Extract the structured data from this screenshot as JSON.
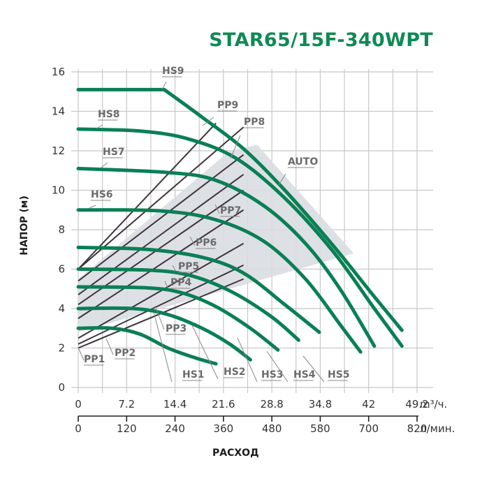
{
  "title": "STAR65/15F-340WPT",
  "axes": {
    "ylabel": "НАПОР (м)",
    "xlabel": "РАСХОД",
    "x_unit_top": "m³/ч.",
    "x_unit_bottom": "л/мин."
  },
  "colors": {
    "hs_curve": "#0a7f55",
    "pp_line": "#3d343d",
    "shade": "#d9dde1",
    "grid": "#c8c8c8",
    "title": "#0f8a55",
    "label": "#6b6b6b"
  },
  "chart_data": {
    "type": "line",
    "title": "STAR65/15F-340WPT",
    "xlabel": "РАСХОД",
    "ylabel": "НАПОР (м)",
    "x_ticks_m3h": [
      "0",
      "7.2",
      "14.4",
      "21.6",
      "28.8",
      "34.8",
      "42",
      "49.2"
    ],
    "x_ticks_lmin": [
      "0",
      "120",
      "240",
      "360",
      "480",
      "580",
      "700",
      "820"
    ],
    "y_ticks": [
      "0",
      "2",
      "4",
      "6",
      "8",
      "10",
      "12",
      "14",
      "16"
    ],
    "xlim": [
      0,
      49.2
    ],
    "ylim": [
      0,
      16
    ],
    "grid": true,
    "series": [
      {
        "name": "HS1",
        "type": "hs",
        "points": [
          [
            0,
            3.0
          ],
          [
            5,
            3.0
          ],
          [
            9,
            2.7
          ],
          [
            13,
            2.0
          ],
          [
            17,
            1.5
          ],
          [
            20,
            1.2
          ]
        ]
      },
      {
        "name": "HS2",
        "type": "hs",
        "points": [
          [
            0,
            4.0
          ],
          [
            8,
            4.0
          ],
          [
            13,
            3.7
          ],
          [
            18,
            3.0
          ],
          [
            22,
            2.2
          ],
          [
            25,
            1.4
          ]
        ]
      },
      {
        "name": "HS3",
        "type": "hs",
        "points": [
          [
            0,
            5.1
          ],
          [
            10,
            5.05
          ],
          [
            15,
            4.8
          ],
          [
            20,
            4.1
          ],
          [
            25,
            3.0
          ],
          [
            29,
            1.9
          ]
        ]
      },
      {
        "name": "HS4",
        "type": "hs",
        "points": [
          [
            0,
            6.0
          ],
          [
            10,
            5.95
          ],
          [
            16,
            5.7
          ],
          [
            22,
            4.9
          ],
          [
            28,
            3.6
          ],
          [
            32,
            2.4
          ]
        ]
      },
      {
        "name": "HS5",
        "type": "hs",
        "points": [
          [
            0,
            7.1
          ],
          [
            10,
            7.0
          ],
          [
            18,
            6.6
          ],
          [
            24,
            5.8
          ],
          [
            30,
            4.2
          ],
          [
            35,
            2.8
          ]
        ]
      },
      {
        "name": "HS6",
        "type": "hs",
        "points": [
          [
            0,
            9.0
          ],
          [
            12,
            8.95
          ],
          [
            20,
            8.5
          ],
          [
            27,
            7.4
          ],
          [
            33,
            5.5
          ],
          [
            38,
            3.2
          ],
          [
            41,
            1.8
          ]
        ]
      },
      {
        "name": "HS7",
        "type": "hs",
        "points": [
          [
            0,
            11.1
          ],
          [
            13,
            10.9
          ],
          [
            20,
            10.5
          ],
          [
            27,
            9.2
          ],
          [
            33,
            7.3
          ],
          [
            38,
            5.0
          ],
          [
            43,
            2.1
          ]
        ]
      },
      {
        "name": "HS8",
        "type": "hs",
        "points": [
          [
            0,
            13.1
          ],
          [
            9,
            13.0
          ],
          [
            16,
            12.6
          ],
          [
            23,
            11.6
          ],
          [
            30,
            9.6
          ],
          [
            37,
            6.9
          ],
          [
            43,
            4.0
          ],
          [
            47,
            2.1
          ]
        ]
      },
      {
        "name": "HS9",
        "type": "hs",
        "points": [
          [
            0,
            15.1
          ],
          [
            12.5,
            15.1
          ],
          [
            18,
            13.7
          ],
          [
            24,
            12.1
          ],
          [
            30,
            10.0
          ],
          [
            37,
            7.2
          ],
          [
            43,
            4.6
          ],
          [
            47,
            2.9
          ]
        ]
      },
      {
        "name": "PP1",
        "type": "pp",
        "points": [
          [
            0,
            2.0
          ],
          [
            24,
            5.5
          ]
        ]
      },
      {
        "name": "PP2",
        "type": "pp",
        "points": [
          [
            0,
            2.2
          ],
          [
            24,
            6.2
          ]
        ]
      },
      {
        "name": "PP3",
        "type": "pp",
        "points": [
          [
            0,
            2.5
          ],
          [
            24,
            7.3
          ]
        ]
      },
      {
        "name": "PP4",
        "type": "pp",
        "points": [
          [
            0,
            3.5
          ],
          [
            24,
            9.0
          ]
        ]
      },
      {
        "name": "PP5",
        "type": "pp",
        "points": [
          [
            0,
            4.2
          ],
          [
            24,
            10.0
          ]
        ]
      },
      {
        "name": "PP6",
        "type": "pp",
        "points": [
          [
            0,
            4.7
          ],
          [
            24,
            10.8
          ]
        ]
      },
      {
        "name": "PP7",
        "type": "pp",
        "points": [
          [
            0,
            5.4
          ],
          [
            24,
            11.8
          ]
        ]
      },
      {
        "name": "PP8",
        "type": "pp",
        "points": [
          [
            0,
            6.0
          ],
          [
            24,
            13.2
          ]
        ]
      },
      {
        "name": "PP9",
        "type": "pp",
        "points": [
          [
            0,
            6.0
          ],
          [
            20,
            13.4
          ]
        ]
      }
    ],
    "shaded_region": {
      "name": "AUTO",
      "points": [
        [
          0,
          2.8
        ],
        [
          0,
          5.5
        ],
        [
          22,
          12.0
        ],
        [
          26,
          12.3
        ],
        [
          40,
          6.8
        ],
        [
          0,
          2.8
        ]
      ]
    },
    "labels": [
      "HS1",
      "HS2",
      "HS3",
      "HS4",
      "HS5",
      "HS6",
      "HS7",
      "HS8",
      "HS9",
      "PP1",
      "PP2",
      "PP3",
      "PP4",
      "PP5",
      "PP6",
      "PP7",
      "PP8",
      "PP9",
      "AUTO"
    ]
  }
}
